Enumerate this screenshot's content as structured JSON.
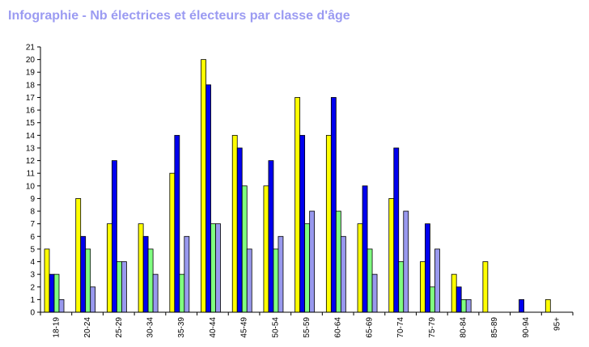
{
  "chart_data": {
    "type": "bar",
    "title": "Infographie - Nb électrices et électeurs par classe d'âge",
    "categories": [
      "18-19",
      "20-24",
      "25-29",
      "30-34",
      "35-39",
      "40-44",
      "45-49",
      "50-54",
      "55-59",
      "60-64",
      "65-69",
      "70-74",
      "75-79",
      "80-84",
      "85-89",
      "90-94",
      "95+"
    ],
    "series": [
      {
        "color": "#ffff00",
        "values": [
          5,
          9,
          7,
          7,
          11,
          20,
          14,
          10,
          17,
          14,
          7,
          9,
          4,
          3,
          4,
          0,
          1
        ]
      },
      {
        "color": "#0000ee",
        "values": [
          3,
          6,
          12,
          6,
          14,
          18,
          13,
          12,
          14,
          17,
          10,
          13,
          7,
          2,
          0,
          1,
          0
        ]
      },
      {
        "color": "#80ff80",
        "values": [
          3,
          5,
          4,
          5,
          3,
          7,
          10,
          5,
          7,
          8,
          5,
          4,
          2,
          1,
          0,
          0,
          0
        ]
      },
      {
        "color": "#9999ee",
        "values": [
          1,
          2,
          4,
          3,
          6,
          7,
          5,
          6,
          8,
          6,
          3,
          8,
          5,
          1,
          0,
          0,
          0
        ]
      }
    ],
    "ylim": [
      0,
      21
    ],
    "yticks": [
      "0",
      "1",
      "2",
      "3",
      "4",
      "5",
      "6",
      "7",
      "8",
      "9",
      "10",
      "11",
      "12",
      "13",
      "14",
      "15",
      "16",
      "17",
      "18",
      "19",
      "20",
      "21"
    ],
    "grid": false,
    "legend": "none"
  }
}
